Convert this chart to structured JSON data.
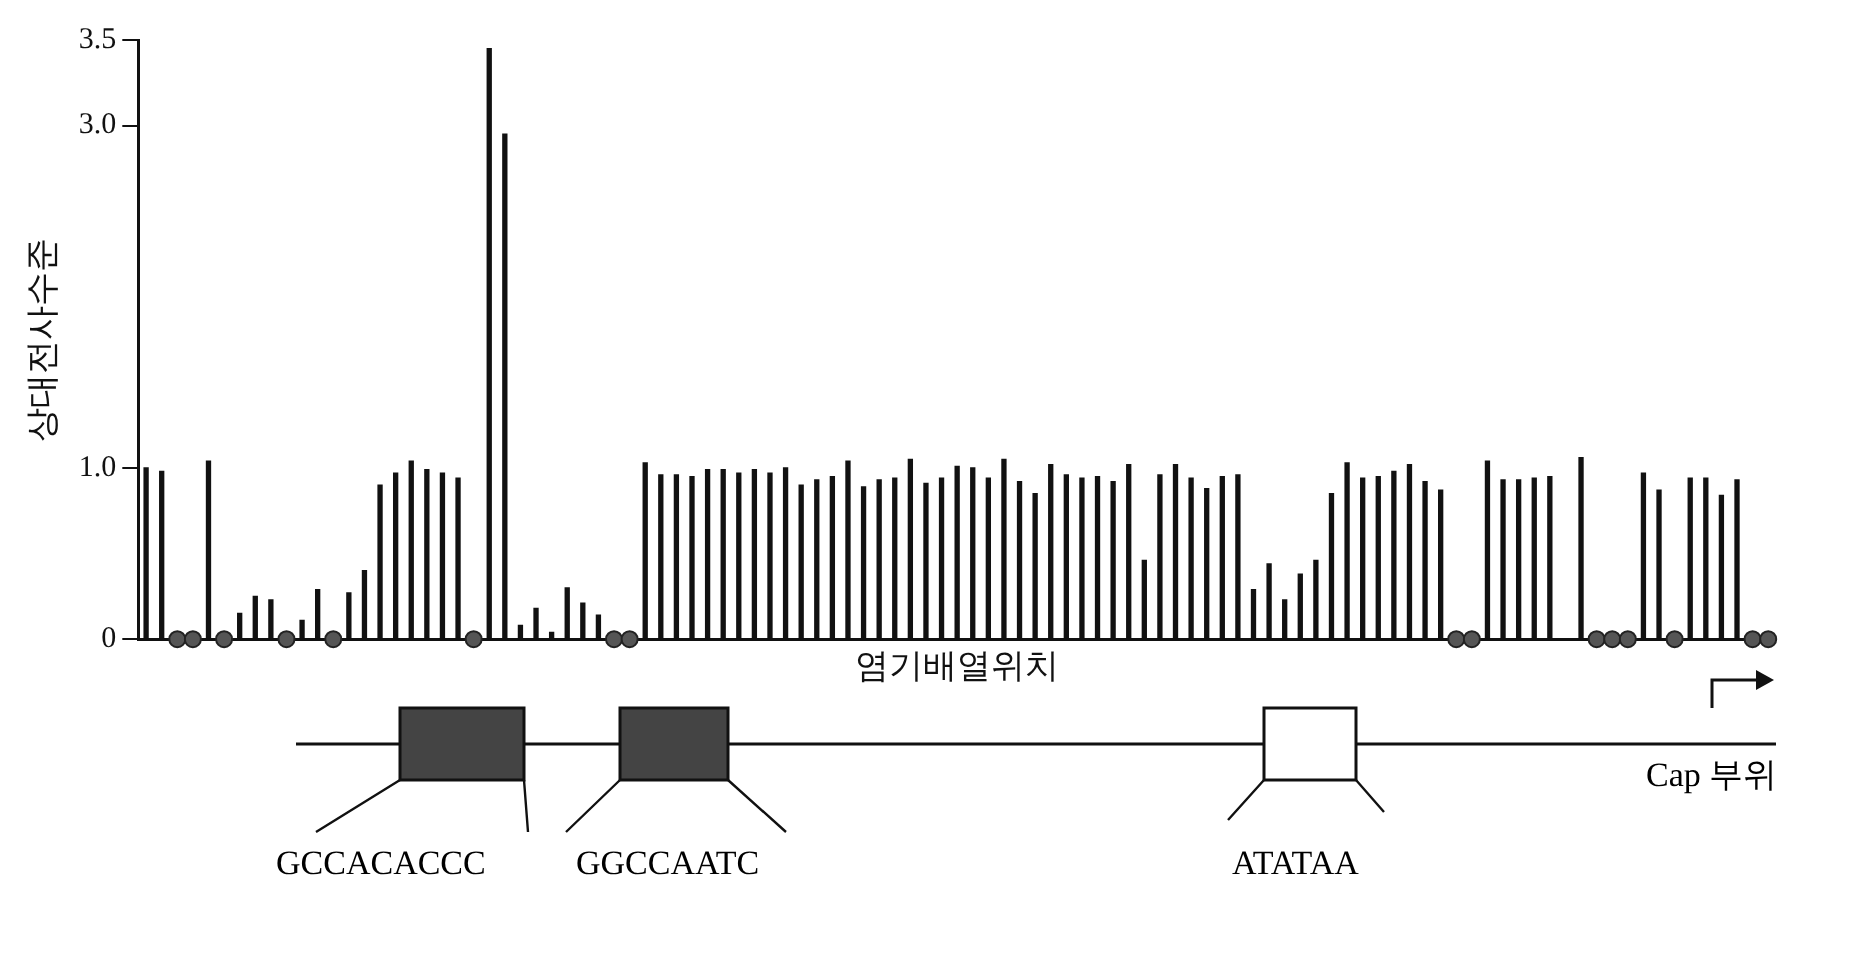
{
  "chart_data": {
    "type": "bar",
    "ylabel": "상대전사수준",
    "xlabel": "염기배열위치",
    "categories": [
      null,
      null,
      null,
      null,
      null,
      null,
      null,
      null,
      null,
      null,
      null,
      null,
      null,
      null,
      null,
      null,
      null,
      null,
      null,
      null,
      null,
      null,
      null,
      null,
      null,
      null,
      null,
      null,
      null,
      null,
      null,
      null,
      null,
      null,
      null,
      null,
      null,
      null,
      null,
      null,
      null,
      null,
      null,
      null,
      null,
      null,
      null,
      null,
      null,
      null,
      null,
      null,
      null,
      null,
      null,
      null,
      null,
      null,
      null,
      null,
      null,
      null,
      null,
      null,
      null,
      null,
      null,
      null,
      null,
      null,
      null,
      null,
      null,
      null,
      null,
      null,
      null,
      null,
      null,
      null,
      null,
      null,
      null,
      null,
      null,
      null,
      null,
      null,
      null,
      null,
      null,
      null,
      null,
      null,
      null,
      null,
      null,
      null,
      null,
      null,
      null,
      null,
      null,
      null,
      null
    ],
    "series": [
      {
        "color": "#111111",
        "values": [
          1.0,
          0.98,
          0,
          0,
          1.04,
          0,
          0.15,
          0.25,
          0.23,
          0,
          0.11,
          0.29,
          0,
          0.27,
          0.4,
          0.9,
          0.97,
          1.04,
          0.99,
          0.97,
          0.94,
          0,
          3.45,
          2.95,
          0.08,
          0.18,
          0.04,
          0.3,
          0.21,
          0.14,
          0,
          0,
          1.03,
          0.96,
          0.96,
          0.95,
          0.99,
          0.99,
          0.97,
          0.99,
          0.97,
          1.0,
          0.9,
          0.93,
          0.95,
          1.04,
          0.89,
          0.93,
          0.94,
          1.05,
          0.91,
          0.94,
          1.01,
          1.0,
          0.94,
          1.05,
          0.92,
          0.85,
          1.02,
          0.96,
          0.94,
          0.95,
          0.92,
          1.02,
          0.46,
          0.96,
          1.02,
          0.94,
          0.88,
          0.95,
          0.96,
          0.29,
          0.44,
          0.23,
          0.38,
          0.46,
          0.85,
          1.03,
          0.94,
          0.95,
          0.98,
          1.02,
          0.92,
          0.87,
          0,
          0,
          1.04,
          0.93,
          0.93,
          0.94,
          0.95,
          null,
          1.06,
          0,
          0,
          0,
          0.97,
          0.87,
          0,
          0.94,
          0.94,
          0.84,
          0.93,
          0,
          0
        ]
      },
      {
        "type": "scatter",
        "color": "#555555",
        "marker": "circle",
        "values": [
          null,
          null,
          0,
          0,
          null,
          0,
          null,
          null,
          null,
          0,
          null,
          null,
          0,
          null,
          null,
          null,
          null,
          null,
          null,
          null,
          null,
          0,
          null,
          null,
          null,
          null,
          null,
          null,
          null,
          null,
          0,
          0,
          null,
          null,
          null,
          null,
          null,
          null,
          null,
          null,
          null,
          null,
          null,
          null,
          null,
          null,
          null,
          null,
          null,
          null,
          null,
          null,
          null,
          null,
          null,
          null,
          null,
          null,
          null,
          null,
          null,
          null,
          null,
          null,
          null,
          null,
          null,
          null,
          null,
          null,
          null,
          null,
          null,
          null,
          null,
          null,
          null,
          null,
          null,
          null,
          null,
          null,
          null,
          null,
          0,
          0,
          null,
          null,
          null,
          null,
          null,
          null,
          null,
          0,
          0,
          0,
          null,
          null,
          0,
          null,
          null,
          null,
          null,
          0,
          0
        ]
      }
    ],
    "ylim": [
      0,
      3.5
    ],
    "yticks": [
      0,
      {
        "value": 1,
        "label": "1.0"
      },
      {
        "value": 3,
        "label": "3.0"
      },
      3.5
    ],
    "tick_labels": "y",
    "grid": false,
    "legend": false,
    "annotations": [
      "GCCACACCC",
      "GGCCAATC",
      "ATATAA",
      "Cap 부위"
    ]
  }
}
